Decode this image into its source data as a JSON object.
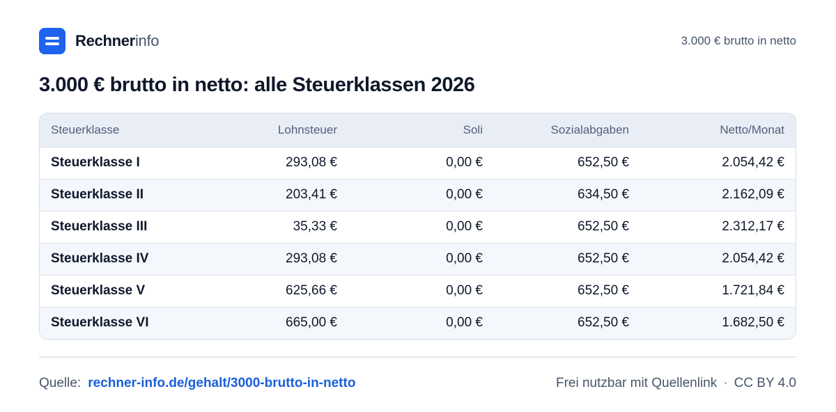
{
  "header": {
    "brand_bold": "Rechner",
    "brand_light": "info",
    "right_text": "3.000 € brutto in netto"
  },
  "title": "3.000 € brutto in netto: alle Steuerklassen 2026",
  "table": {
    "columns": [
      "Steuerklasse",
      "Lohnsteuer",
      "Soli",
      "Sozialabgaben",
      "Netto/Monat"
    ],
    "rows": [
      [
        "Steuerklasse I",
        "293,08 €",
        "0,00 €",
        "652,50 €",
        "2.054,42 €"
      ],
      [
        "Steuerklasse II",
        "203,41 €",
        "0,00 €",
        "634,50 €",
        "2.162,09 €"
      ],
      [
        "Steuerklasse III",
        "35,33 €",
        "0,00 €",
        "652,50 €",
        "2.312,17 €"
      ],
      [
        "Steuerklasse IV",
        "293,08 €",
        "0,00 €",
        "652,50 €",
        "2.054,42 €"
      ],
      [
        "Steuerklasse V",
        "625,66 €",
        "0,00 €",
        "652,50 €",
        "1.721,84 €"
      ],
      [
        "Steuerklasse VI",
        "665,00 €",
        "0,00 €",
        "652,50 €",
        "1.682,50 €"
      ]
    ]
  },
  "footer": {
    "source_label": "Quelle:",
    "source_link": "rechner-info.de/gehalt/3000-brutto-in-netto",
    "license_text": "Frei nutzbar mit Quellenlink",
    "separator": "·",
    "license_name": "CC BY 4.0"
  },
  "colors": {
    "accent": "#1d63ed",
    "link": "#1a5fd8",
    "header_row_bg": "#e9eef6",
    "alt_row_bg": "#f4f7fb"
  },
  "icons": {
    "logo": "rechnerinfo-logo-icon"
  }
}
